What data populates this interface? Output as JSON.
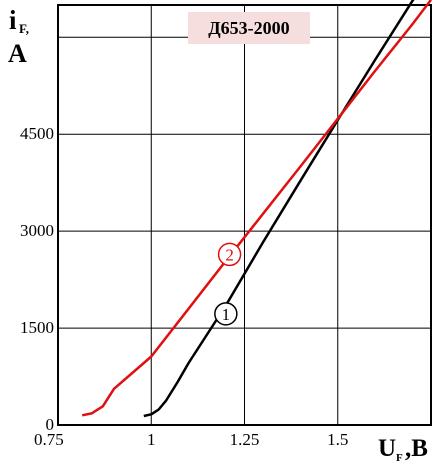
{
  "chart_data": {
    "type": "line",
    "title": "Д653-2000",
    "colors": {
      "title_bg": "#f7dede",
      "curve_1": "#000000",
      "curve_2": "#e01010",
      "grid": "#000000"
    },
    "x_axis": {
      "symbol": "U",
      "subscript": "F",
      "unit": ",B",
      "range": [
        0.75,
        1.75
      ],
      "ticks": [
        0.75,
        1,
        1.25,
        1.5
      ],
      "tick_labels": [
        "0.75",
        "1",
        "1.25",
        "1.5"
      ]
    },
    "y_axis": {
      "symbol": "i",
      "subscript": "F,",
      "unit": "A",
      "range": [
        0,
        6500
      ],
      "ticks": [
        0,
        1500,
        3000,
        4500
      ],
      "tick_labels": [
        "0",
        "1500",
        "3000",
        "4500"
      ],
      "grid_lines": [
        0,
        1500,
        3000,
        4500,
        6000
      ]
    },
    "grid": true,
    "series": [
      {
        "name": "1",
        "color": "#000000",
        "points": [
          [
            0.98,
            140
          ],
          [
            1.0,
            165
          ],
          [
            1.02,
            240
          ],
          [
            1.04,
            380
          ],
          [
            1.07,
            660
          ],
          [
            1.1,
            960
          ],
          [
            1.2,
            1850
          ],
          [
            1.3,
            2830
          ],
          [
            1.4,
            3780
          ],
          [
            1.5,
            4720
          ],
          [
            1.6,
            5650
          ],
          [
            1.7,
            6560
          ],
          [
            1.735,
            6850
          ]
        ]
      },
      {
        "name": "2",
        "color": "#e01010",
        "points": [
          [
            0.815,
            150
          ],
          [
            0.84,
            180
          ],
          [
            0.87,
            290
          ],
          [
            0.9,
            560
          ],
          [
            1.0,
            1060
          ],
          [
            1.1,
            1800
          ],
          [
            1.2,
            2540
          ],
          [
            1.3,
            3270
          ],
          [
            1.4,
            4000
          ],
          [
            1.5,
            4740
          ],
          [
            1.6,
            5480
          ],
          [
            1.7,
            6200
          ],
          [
            1.75,
            6580
          ]
        ]
      }
    ],
    "labels": [
      {
        "text": "1",
        "x": 1.2,
        "y": 1720,
        "color": "#000000"
      },
      {
        "text": "2",
        "x": 1.21,
        "y": 2640,
        "color": "#e01010"
      }
    ]
  }
}
